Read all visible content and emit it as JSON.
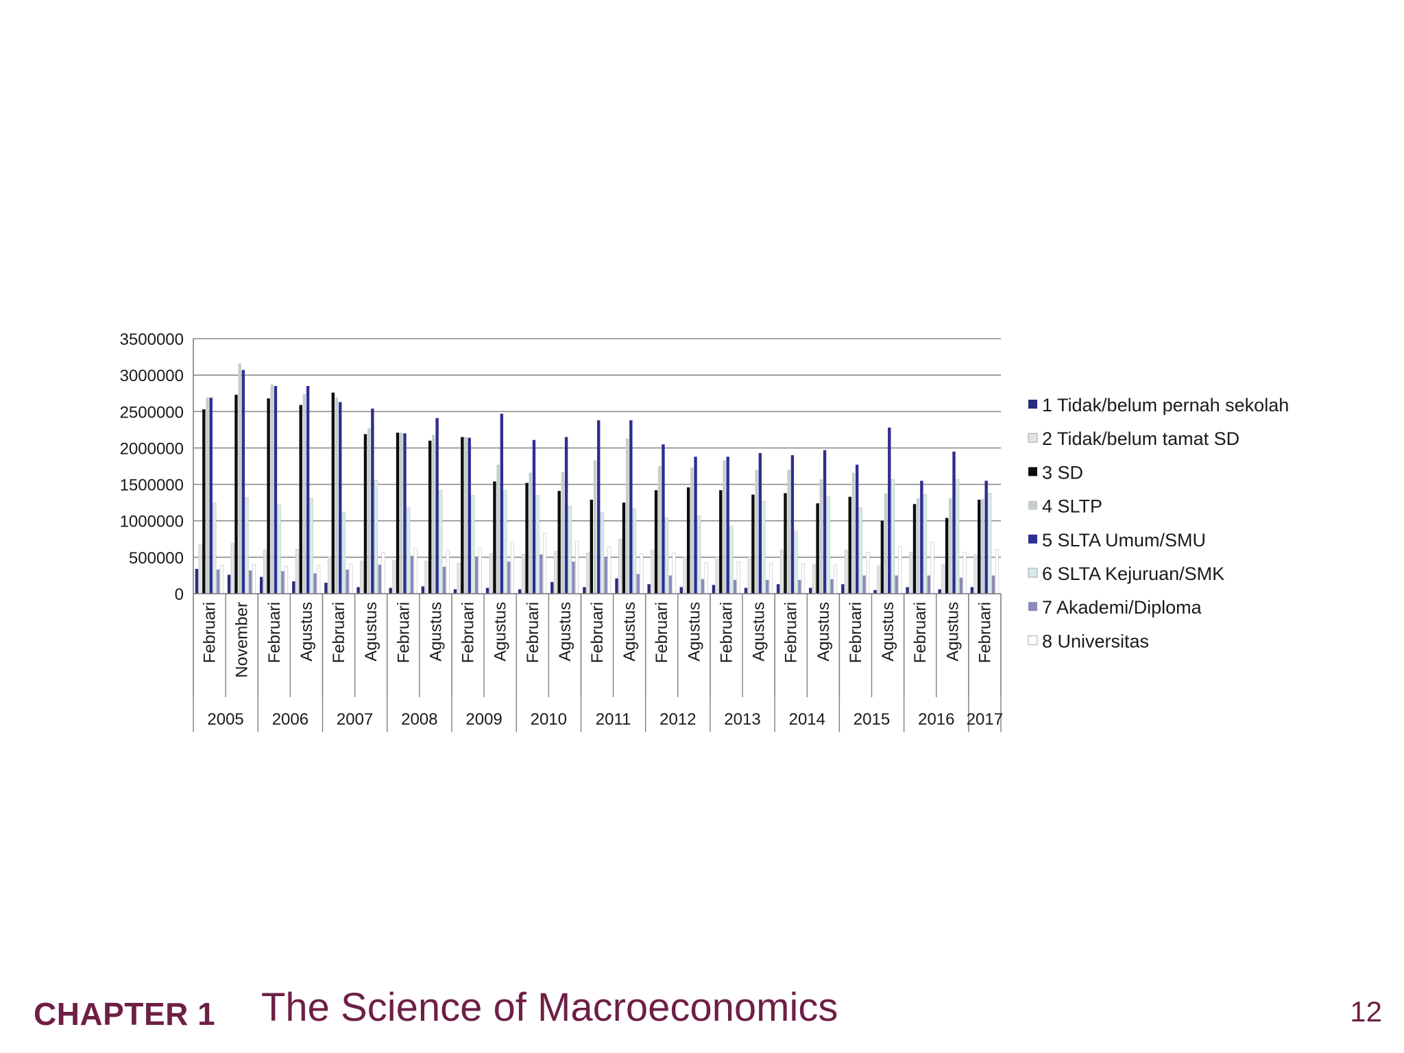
{
  "footer": {
    "chapter": "CHAPTER 1",
    "title": "The Science of Macroeconomics",
    "page": "12"
  },
  "colors": [
    "#2b2b80",
    "#e3e3e3",
    "#0d0d0d",
    "#c5cdcd",
    "#2e2e8f",
    "#d6ecec",
    "#8b8bb8",
    "#ffffff"
  ],
  "chart_data": {
    "type": "bar",
    "title": "",
    "xlabel": "",
    "ylabel": "",
    "ylim": [
      0,
      3500000
    ],
    "yticks": [
      0,
      500000,
      1000000,
      1500000,
      2000000,
      2500000,
      3000000,
      3500000
    ],
    "ytick_labels": [
      "0",
      "500000",
      "1000000",
      "1500000",
      "2000000",
      "2500000",
      "3000000",
      "3500000"
    ],
    "grid": "horizontal",
    "legend_position": "right",
    "categories": [
      "Februari",
      "November",
      "Februari",
      "Agustus",
      "Februari",
      "Agustus",
      "Februari",
      "Agustus",
      "Februari",
      "Agustus",
      "Februari",
      "Agustus",
      "Februari",
      "Agustus",
      "Februari",
      "Agustus",
      "Februari",
      "Agustus",
      "Februari",
      "Agustus",
      "Februari",
      "Agustus",
      "Februari",
      "Agustus",
      "Februari"
    ],
    "years": [
      {
        "label": "2005",
        "span": 2
      },
      {
        "label": "2006",
        "span": 2
      },
      {
        "label": "2007",
        "span": 2
      },
      {
        "label": "2008",
        "span": 2
      },
      {
        "label": "2009",
        "span": 2
      },
      {
        "label": "2010",
        "span": 2
      },
      {
        "label": "2011",
        "span": 2
      },
      {
        "label": "2012",
        "span": 2
      },
      {
        "label": "2013",
        "span": 2
      },
      {
        "label": "2014",
        "span": 2
      },
      {
        "label": "2015",
        "span": 2
      },
      {
        "label": "2016",
        "span": 2
      },
      {
        "label": "2017",
        "span": 1
      }
    ],
    "series": [
      {
        "name": "1 Tidak/belum pernah sekolah",
        "values": [
          340000,
          260000,
          230000,
          170000,
          150000,
          90000,
          80000,
          100000,
          60000,
          80000,
          60000,
          160000,
          90000,
          210000,
          130000,
          90000,
          120000,
          80000,
          130000,
          80000,
          130000,
          50000,
          90000,
          60000,
          90000
        ]
      },
      {
        "name": "2 Tidak/belum tamat SD",
        "values": [
          680000,
          690000,
          600000,
          610000,
          510000,
          450000,
          460000,
          450000,
          420000,
          550000,
          540000,
          580000,
          560000,
          750000,
          600000,
          510000,
          510000,
          510000,
          600000,
          400000,
          600000,
          380000,
          570000,
          400000,
          540000
        ]
      },
      {
        "name": "3 SD",
        "values": [
          2530000,
          2730000,
          2680000,
          2590000,
          2760000,
          2190000,
          2210000,
          2100000,
          2150000,
          1540000,
          1520000,
          1410000,
          1290000,
          1250000,
          1420000,
          1460000,
          1420000,
          1360000,
          1380000,
          1240000,
          1330000,
          1000000,
          1230000,
          1040000,
          1290000
        ]
      },
      {
        "name": "4 SLTP",
        "values": [
          2690000,
          3160000,
          2870000,
          2740000,
          2690000,
          2270000,
          2210000,
          2180000,
          2150000,
          1770000,
          1660000,
          1670000,
          1830000,
          2130000,
          1750000,
          1730000,
          1830000,
          1700000,
          1700000,
          1570000,
          1660000,
          1380000,
          1310000,
          1310000,
          1300000
        ]
      },
      {
        "name": "5 SLTA Umum/SMU",
        "values": [
          2690000,
          3070000,
          2850000,
          2850000,
          2630000,
          2540000,
          2200000,
          2410000,
          2140000,
          2470000,
          2110000,
          2150000,
          2380000,
          2380000,
          2050000,
          1880000,
          1880000,
          1930000,
          1900000,
          1970000,
          1770000,
          2280000,
          1550000,
          1950000,
          1550000
        ]
      },
      {
        "name": "6 SLTA Kejuruan/SMK",
        "values": [
          1250000,
          1320000,
          1220000,
          1310000,
          1120000,
          1560000,
          1180000,
          1420000,
          1350000,
          1420000,
          1350000,
          1200000,
          1110000,
          1170000,
          1040000,
          1070000,
          930000,
          1270000,
          860000,
          1330000,
          1180000,
          1570000,
          1360000,
          1570000,
          1380000
        ]
      },
      {
        "name": "7 Akademi/Diploma",
        "values": [
          330000,
          320000,
          310000,
          280000,
          330000,
          400000,
          520000,
          370000,
          510000,
          440000,
          540000,
          440000,
          500000,
          270000,
          250000,
          200000,
          190000,
          190000,
          190000,
          200000,
          250000,
          250000,
          250000,
          220000,
          250000
        ]
      },
      {
        "name": "8 Universitas",
        "values": [
          390000,
          400000,
          380000,
          390000,
          410000,
          570000,
          630000,
          600000,
          630000,
          710000,
          830000,
          720000,
          640000,
          550000,
          560000,
          430000,
          440000,
          420000,
          410000,
          400000,
          570000,
          650000,
          710000,
          570000,
          610000
        ]
      }
    ]
  }
}
